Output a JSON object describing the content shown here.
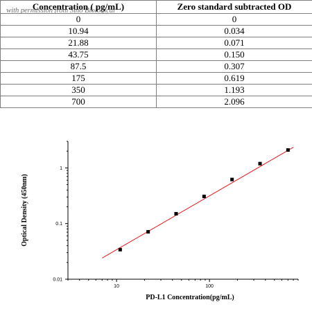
{
  "table": {
    "headers": [
      "Concentration ( pg/mL)",
      "Zero standard subtracted OD"
    ],
    "watermark": "with permission from Sino Biological",
    "rows": [
      [
        "0",
        "0"
      ],
      [
        "10.94",
        "0.034"
      ],
      [
        "21.88",
        "0.071"
      ],
      [
        "43.75",
        "0.150"
      ],
      [
        "87.5",
        "0.307"
      ],
      [
        "175",
        "0.619"
      ],
      [
        "350",
        "1.193"
      ],
      [
        "700",
        "2.096"
      ]
    ]
  },
  "chart_data": {
    "type": "scatter",
    "xlabel": "PD-L1  Concentration(pg/mL)",
    "ylabel": "Optical Density (450nm)",
    "xscale": "log",
    "yscale": "log",
    "xlim": [
      3,
      900
    ],
    "ylim": [
      0.01,
      3
    ],
    "xticks": [
      10,
      100
    ],
    "xtick_labels": [
      "10",
      "100"
    ],
    "yticks": [
      0.01,
      0.1,
      1
    ],
    "ytick_labels": [
      "0.01",
      "0.1",
      "1"
    ],
    "series": [
      {
        "x": [
          10.94,
          21.88,
          43.75,
          87.5,
          175,
          350,
          700
        ],
        "y": [
          0.034,
          0.071,
          0.15,
          0.307,
          0.619,
          1.193,
          2.096
        ]
      }
    ],
    "fit_line": {
      "x": [
        7,
        800
      ],
      "y": [
        0.024,
        2.35
      ]
    },
    "colors": {
      "points": "#000000",
      "fit_line": "#e8141b",
      "axes": "#000000"
    }
  }
}
